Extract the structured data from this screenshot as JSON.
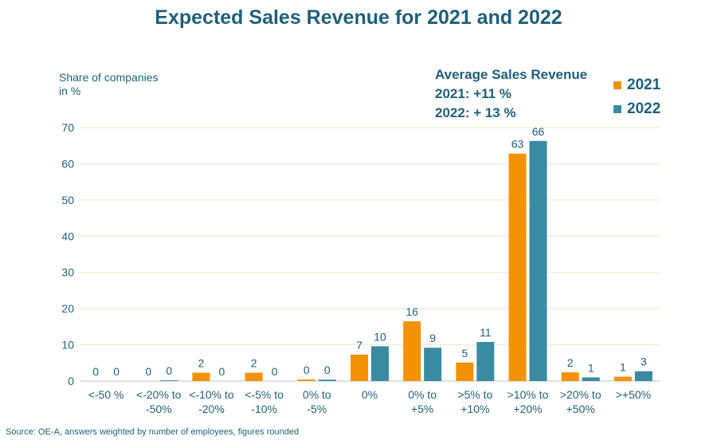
{
  "chart_data": {
    "type": "bar",
    "title": "Expected Sales Revenue for 2021 and 2022",
    "ylabel": "Share of companies in %",
    "xlabel": "",
    "ylim": [
      0,
      70
    ],
    "yticks": [
      0,
      10,
      20,
      30,
      40,
      50,
      60,
      70
    ],
    "grid": true,
    "legend_position": "top-right",
    "categories": [
      [
        "<-50 %"
      ],
      [
        "<-20% to",
        "-50%"
      ],
      [
        "<-10% to",
        "-20%"
      ],
      [
        "<-5% to",
        "-10%"
      ],
      [
        "0% to",
        "-5%"
      ],
      [
        "0%"
      ],
      [
        "0% to",
        "+5%"
      ],
      [
        ">5% to",
        "+10%"
      ],
      [
        ">10% to",
        "+20%"
      ],
      [
        ">20% to",
        "+50%"
      ],
      [
        ">+50%"
      ]
    ],
    "series": [
      {
        "name": "2021",
        "color": "#f39200",
        "values": [
          0,
          0,
          2.3,
          2.3,
          0.4,
          7.3,
          16.5,
          5.1,
          62.8,
          2.4,
          1.2
        ],
        "labels": [
          "0",
          "0",
          "2",
          "2",
          "0",
          "7",
          "16",
          "5",
          "63",
          "2",
          "1"
        ]
      },
      {
        "name": "2022",
        "color": "#3a8ba1",
        "values": [
          0,
          0.2,
          0,
          0,
          0.4,
          9.6,
          9.2,
          10.8,
          66.3,
          1.0,
          2.7
        ],
        "labels": [
          "0",
          "0",
          "0",
          "0",
          "0",
          "10",
          "9",
          "11",
          "66",
          "1",
          "3"
        ]
      }
    ],
    "annotation": {
      "title": "Average Sales Revenue",
      "line1": "2021: +11 %",
      "line2": "2022: + 13 %"
    }
  },
  "source": "Source: OE-A, answers weighted by number of employees, figures rounded"
}
